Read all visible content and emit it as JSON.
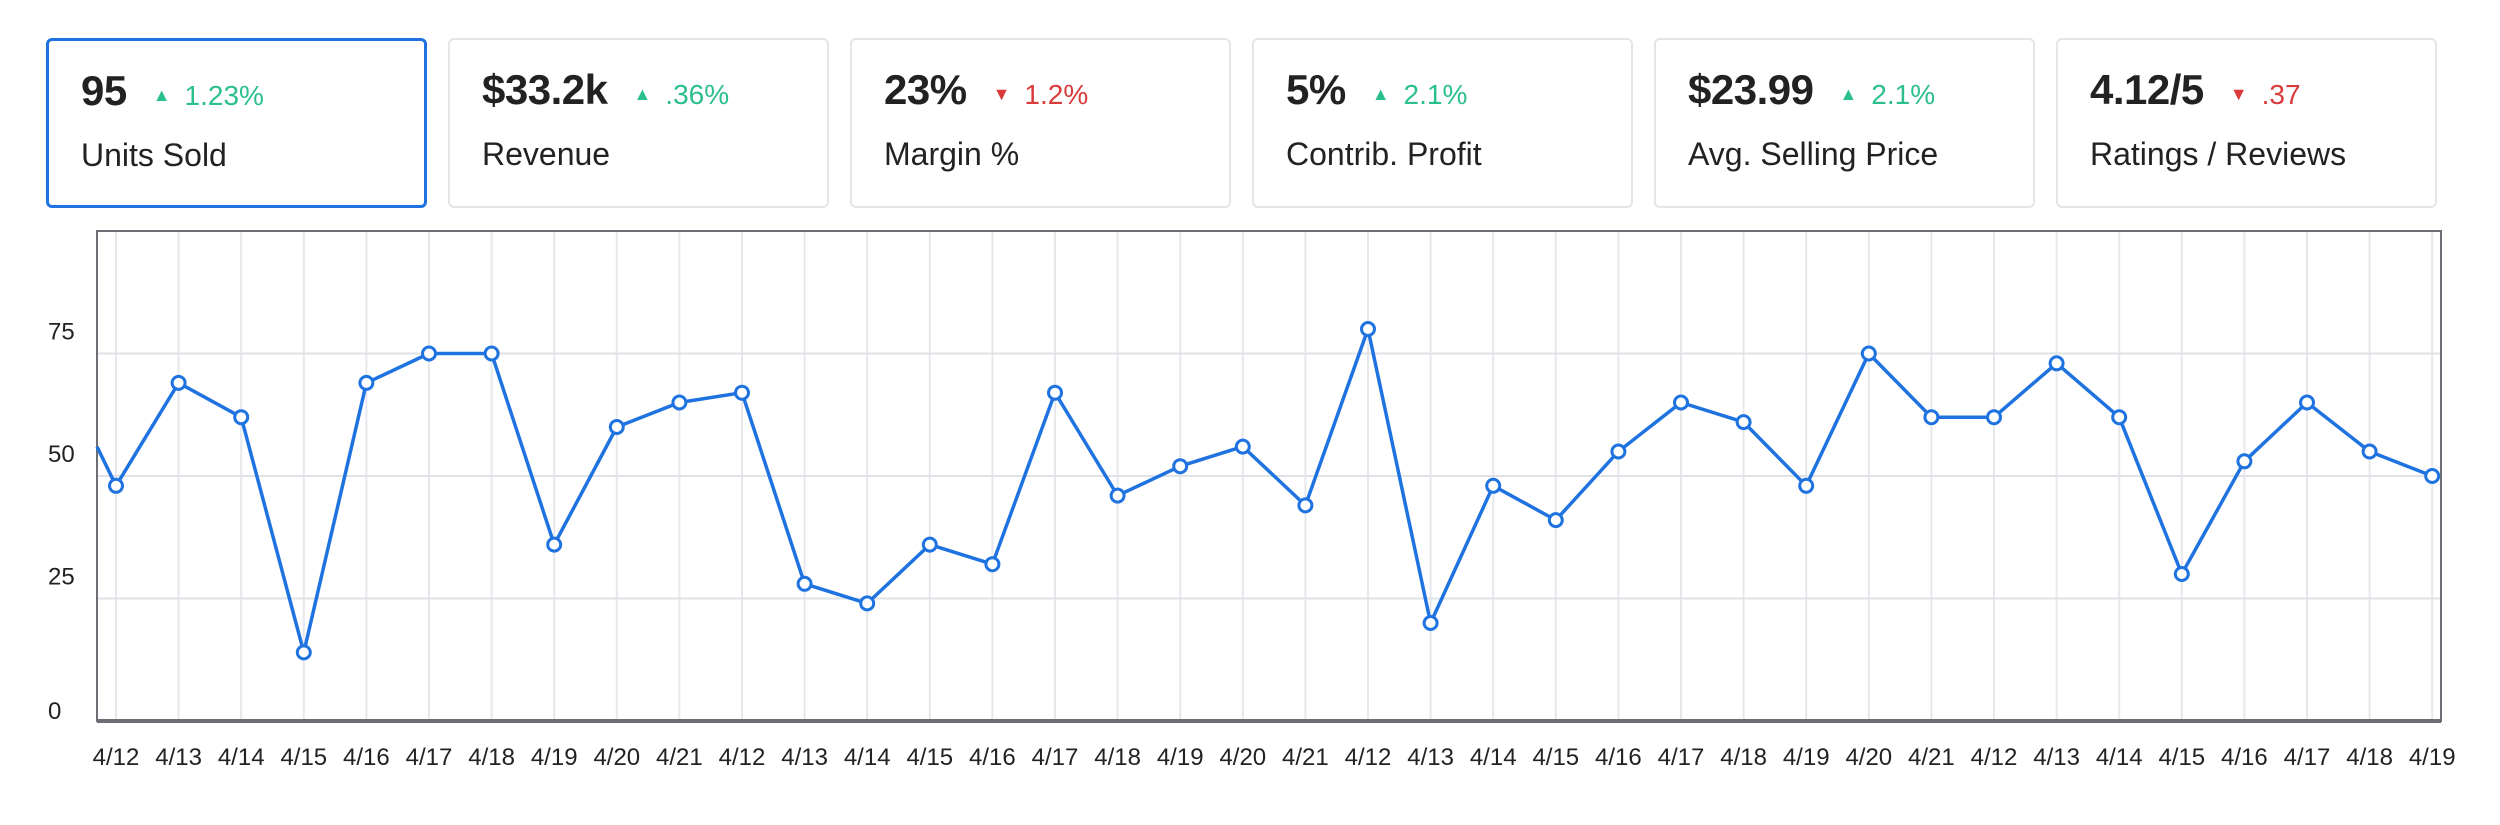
{
  "kpis": [
    {
      "value": "95",
      "delta": "1.23%",
      "direction": "up",
      "label": "Units Sold",
      "selected": true
    },
    {
      "value": "$33.2k",
      "delta": ".36%",
      "direction": "up",
      "label": "Revenue",
      "selected": false
    },
    {
      "value": "23%",
      "delta": "1.2%",
      "direction": "down",
      "label": "Margin %",
      "selected": false
    },
    {
      "value": "5%",
      "delta": "2.1%",
      "direction": "up",
      "label": "Contrib. Profit",
      "selected": false
    },
    {
      "value": "$23.99",
      "delta": "2.1%",
      "direction": "up",
      "label": "Avg. Selling Price",
      "selected": false
    },
    {
      "value": "4.12/5",
      "delta": ".37",
      "direction": "down",
      "label": "Ratings / Reviews",
      "selected": false
    }
  ],
  "colors": {
    "up": "#2bbf8e",
    "down": "#d93a3a",
    "line": "#1f73e0",
    "selected_border": "#1f73e0"
  },
  "chart_data": {
    "type": "line",
    "title": "",
    "xlabel": "",
    "ylabel": "",
    "ylim": [
      0,
      100
    ],
    "yticks": [
      0,
      25,
      50,
      75
    ],
    "grid": true,
    "leading_value": 56,
    "categories": [
      "4/12",
      "4/13",
      "4/14",
      "4/15",
      "4/16",
      "4/17",
      "4/18",
      "4/19",
      "4/20",
      "4/21",
      "4/12",
      "4/13",
      "4/14",
      "4/15",
      "4/16",
      "4/17",
      "4/18",
      "4/19",
      "4/20",
      "4/21",
      "4/12",
      "4/13",
      "4/14",
      "4/15",
      "4/16",
      "4/17",
      "4/18",
      "4/19",
      "4/20",
      "4/21",
      "4/12",
      "4/13",
      "4/14",
      "4/15",
      "4/16",
      "4/17",
      "4/18",
      "4/19"
    ],
    "series": [
      {
        "name": "Units Sold",
        "values": [
          48,
          69,
          62,
          14,
          69,
          75,
          75,
          36,
          60,
          65,
          67,
          28,
          24,
          36,
          32,
          67,
          46,
          52,
          56,
          44,
          80,
          20,
          48,
          41,
          55,
          65,
          61,
          48,
          75,
          62,
          62,
          73,
          62,
          30,
          53,
          65,
          55,
          50
        ]
      }
    ]
  }
}
